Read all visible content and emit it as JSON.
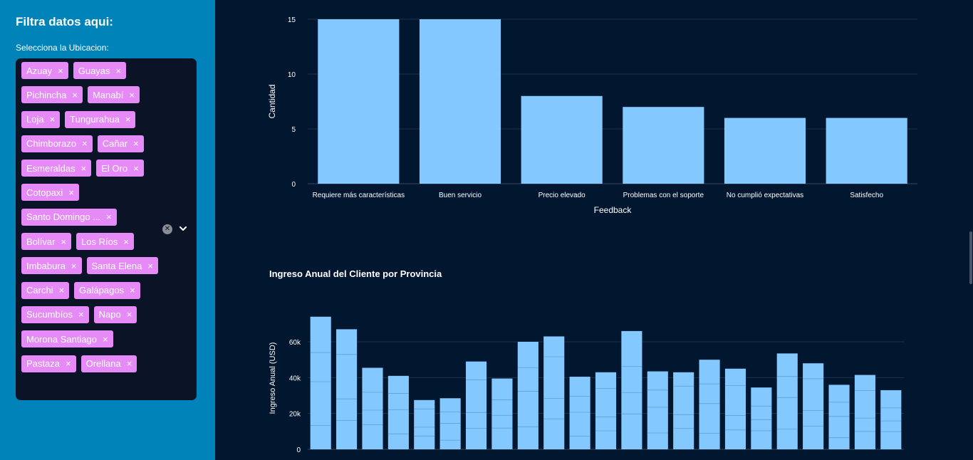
{
  "sidebar": {
    "title": "Filtra datos aqui:",
    "location_label": "Selecciona la Ubicacion:",
    "tags": [
      "Azuay",
      "Guayas",
      "Pichincha",
      "Manabí",
      "Loja",
      "Tungurahua",
      "Chimborazo",
      "Cañar",
      "Esmeraldas",
      "El Oro",
      "Cotopaxi",
      "Santo Domingo ...",
      "Bolívar",
      "Los Ríos",
      "Imbabura",
      "Santa Elena",
      "Carchi",
      "Galápagos",
      "Sucumbíos",
      "Napo",
      "Morona Santiago",
      "Pastaza",
      "Orellana"
    ],
    "tag_remove_glyph": "×"
  },
  "chart_data": [
    {
      "type": "bar",
      "categories": [
        "Requiere más características",
        "Buen servicio",
        "Precio elevado",
        "Problemas con el soporte",
        "No cumplió expectativas",
        "Satisfecho"
      ],
      "values": [
        15,
        15,
        8,
        7,
        6,
        6
      ],
      "xlabel": "Feedback",
      "ylabel": "Cantidad",
      "ylim": [
        0,
        15
      ],
      "yticks": [
        "0",
        "5",
        "10",
        "15"
      ],
      "bar_color": "#83c9ff"
    },
    {
      "type": "bar",
      "title": "Ingreso Anual del Cliente por Provincia",
      "ylabel": "Ingreso Anual (USD)",
      "ylim": [
        0,
        75000
      ],
      "yticks": [
        "0",
        "20k",
        "40k",
        "60k"
      ],
      "values": [
        74000,
        67000,
        45500,
        41000,
        27500,
        28500,
        49000,
        39500,
        60000,
        63000,
        40500,
        43000,
        66000,
        43500,
        43000,
        50000,
        45000,
        34500,
        53500,
        48000,
        36000,
        41500,
        33000
      ],
      "bar_color": "#83c9ff"
    }
  ],
  "colors": {
    "sidebar_bg": "#0083b9",
    "main_bg": "#01162f",
    "tag_bg": "#e68af7",
    "bar": "#83c9ff"
  }
}
